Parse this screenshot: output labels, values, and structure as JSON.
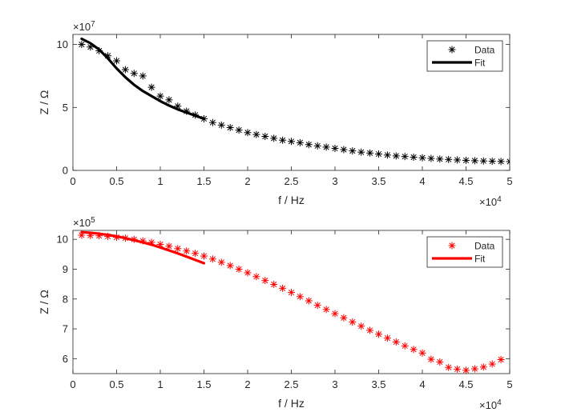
{
  "chart_data": [
    {
      "type": "scatter",
      "xlabel": "f / Hz",
      "ylabel": "Z / Ω",
      "x_exponent_label": "×10",
      "x_exponent_power": "4",
      "y_exponent_label": "×10",
      "y_exponent_power": "7",
      "x_scale": 10000,
      "y_scale": 10000000,
      "xlim": [
        0,
        50000
      ],
      "ylim": [
        0,
        108000000
      ],
      "xticks": [
        0,
        5000,
        10000,
        15000,
        20000,
        25000,
        30000,
        35000,
        40000,
        45000,
        50000
      ],
      "xtick_labels": [
        "0",
        "0.5",
        "1",
        "1.5",
        "2",
        "2.5",
        "3",
        "3.5",
        "4",
        "4.5",
        "5"
      ],
      "yticks": [
        0,
        50000000,
        100000000
      ],
      "ytick_labels": [
        "0",
        "5",
        "10"
      ],
      "legend_position": "top-right",
      "series": [
        {
          "name": "Data",
          "style": "asterisk",
          "color": "#000000",
          "x": [
            1000,
            2000,
            3000,
            4000,
            5000,
            6000,
            7000,
            8000,
            9000,
            10000,
            11000,
            12000,
            13000,
            14000,
            15000,
            16000,
            17000,
            18000,
            19000,
            20000,
            21000,
            22000,
            23000,
            24000,
            25000,
            26000,
            27000,
            28000,
            29000,
            30000,
            31000,
            32000,
            33000,
            34000,
            35000,
            36000,
            37000,
            38000,
            39000,
            40000,
            41000,
            42000,
            43000,
            44000,
            45000,
            46000,
            47000,
            48000,
            49000,
            50000
          ],
          "y": [
            100000000,
            98000000,
            95000000,
            91000000,
            87000000,
            80000000,
            77000000,
            75000000,
            66000000,
            59000000,
            56000000,
            51000000,
            47000000,
            44000000,
            41000000,
            38000000,
            36000000,
            34000000,
            32000000,
            30000000,
            28500000,
            27000000,
            25500000,
            24000000,
            23000000,
            22000000,
            20500000,
            19500000,
            18500000,
            17500000,
            16500000,
            15500000,
            14500000,
            13800000,
            13000000,
            12200000,
            11500000,
            11000000,
            10500000,
            10000000,
            9500000,
            9000000,
            8700000,
            8300000,
            8000000,
            7700000,
            7500000,
            7300000,
            7100000,
            7000000
          ]
        },
        {
          "name": "Fit",
          "style": "line",
          "color": "#000000",
          "x": [
            1000,
            2000,
            3000,
            4000,
            5000,
            6000,
            7000,
            8000,
            9000,
            10000,
            11000,
            12000,
            13000,
            14000,
            15000
          ],
          "y": [
            104500000,
            101000000,
            96000000,
            89000000,
            81000000,
            74000000,
            68000000,
            63000000,
            59000000,
            55000000,
            51500000,
            48500000,
            46000000,
            43500000,
            41000000
          ]
        }
      ]
    },
    {
      "type": "scatter",
      "xlabel": "f / Hz",
      "ylabel": "Z / Ω",
      "x_exponent_label": "×10",
      "x_exponent_power": "4",
      "y_exponent_label": "×10",
      "y_exponent_power": "5",
      "x_scale": 10000,
      "y_scale": 100000,
      "xlim": [
        0,
        50000
      ],
      "ylim": [
        550000,
        1030000
      ],
      "xticks": [
        0,
        5000,
        10000,
        15000,
        20000,
        25000,
        30000,
        35000,
        40000,
        45000,
        50000
      ],
      "xtick_labels": [
        "0",
        "0.5",
        "1",
        "1.5",
        "2",
        "2.5",
        "3",
        "3.5",
        "4",
        "4.5",
        "5"
      ],
      "yticks": [
        600000,
        700000,
        800000,
        900000,
        1000000
      ],
      "ytick_labels": [
        "6",
        "7",
        "8",
        "9",
        "10"
      ],
      "legend_position": "top-right",
      "series": [
        {
          "name": "Data",
          "style": "asterisk",
          "color": "#ff0000",
          "x": [
            1000,
            2000,
            3000,
            4000,
            5000,
            6000,
            7000,
            8000,
            9000,
            10000,
            11000,
            12000,
            13000,
            14000,
            15000,
            16000,
            17000,
            18000,
            19000,
            20000,
            21000,
            22000,
            23000,
            24000,
            25000,
            26000,
            27000,
            28000,
            29000,
            30000,
            31000,
            32000,
            33000,
            34000,
            35000,
            36000,
            37000,
            38000,
            39000,
            40000,
            41000,
            42000,
            43000,
            44000,
            45000,
            46000,
            47000,
            48000,
            49000
          ],
          "y": [
            1014000,
            1013000,
            1012000,
            1010000,
            1007000,
            1004000,
            1000000,
            995000,
            990000,
            983000,
            977000,
            969000,
            961000,
            953000,
            944000,
            934000,
            923000,
            912000,
            900000,
            888000,
            875000,
            862000,
            849000,
            836000,
            822000,
            808000,
            794000,
            779000,
            765000,
            751000,
            737000,
            723000,
            709000,
            695000,
            682000,
            669000,
            656000,
            643000,
            631000,
            619000,
            598000,
            589000,
            571000,
            565000,
            561000,
            566000,
            572000,
            582000,
            597000
          ]
        },
        {
          "name": "Fit",
          "style": "line",
          "color": "#ff0000",
          "x": [
            1000,
            2000,
            3000,
            4000,
            5000,
            6000,
            7000,
            8000,
            9000,
            10000,
            11000,
            12000,
            13000,
            14000,
            15000
          ],
          "y": [
            1024000,
            1022000,
            1019000,
            1015000,
            1010000,
            1004000,
            997000,
            990000,
            982000,
            973000,
            963000,
            953000,
            942000,
            931000,
            920000
          ]
        }
      ]
    }
  ]
}
